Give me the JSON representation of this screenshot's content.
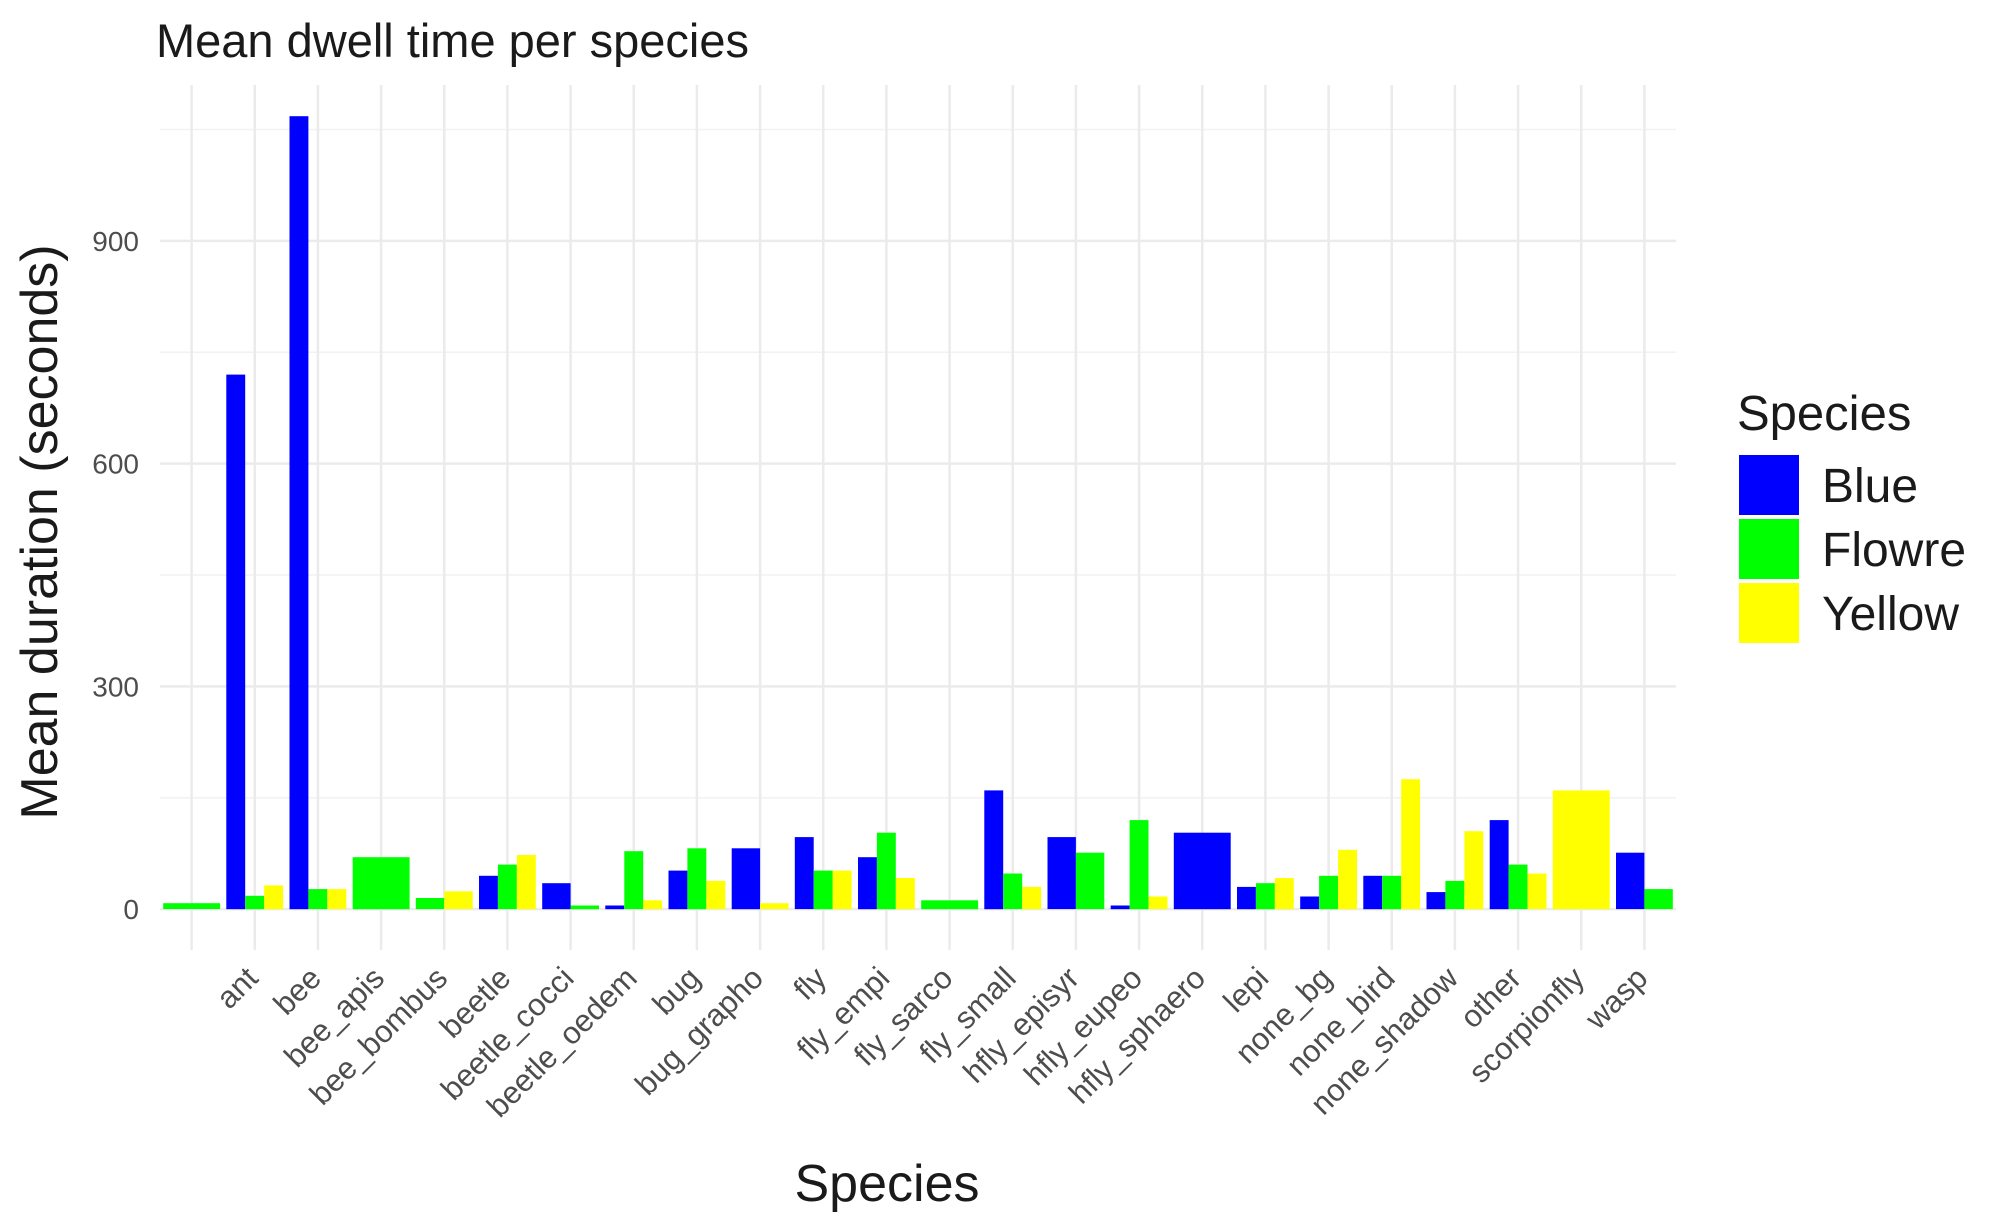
{
  "chart_data": {
    "type": "bar",
    "title": "Mean dwell time per species",
    "xlabel": "Species",
    "ylabel": "Mean duration (seconds)",
    "ylim": [
      -55,
      1110
    ],
    "yticks": [
      0,
      300,
      600,
      900
    ],
    "grid": true,
    "legend": {
      "title": "Species",
      "position": "right"
    },
    "categories": [
      "",
      "ant",
      "bee",
      "bee_apis",
      "bee_bombus",
      "beetle",
      "beetle_cocci",
      "beetle_oedem",
      "bug",
      "bug_grapho",
      "fly",
      "fly_empi",
      "fly_sarco",
      "fly_small",
      "hfly_episyr",
      "hfly_eupeo",
      "hfly_sphaero",
      "lepi",
      "none_bg",
      "none_bird",
      "none_shadow",
      "other",
      "scorpionfly",
      "wasp"
    ],
    "series": [
      {
        "name": "Blue",
        "color": "#0000ff",
        "values": [
          null,
          720,
          1068,
          null,
          null,
          45,
          35,
          5,
          52,
          82,
          97,
          70,
          null,
          160,
          97,
          5,
          103,
          30,
          17,
          45,
          23,
          120,
          null,
          76
        ]
      },
      {
        "name": "Flowre",
        "color": "#00ff00",
        "values": [
          8,
          18,
          27,
          70,
          15,
          60,
          5,
          78,
          82,
          null,
          52,
          103,
          12,
          48,
          76,
          120,
          null,
          35,
          45,
          45,
          38,
          60,
          null,
          27
        ]
      },
      {
        "name": "Yellow",
        "color": "#ffff00",
        "values": [
          null,
          32,
          27,
          null,
          24,
          73,
          null,
          12,
          38,
          8,
          52,
          42,
          null,
          30,
          null,
          17,
          null,
          42,
          80,
          175,
          105,
          48,
          160,
          null
        ]
      }
    ]
  }
}
